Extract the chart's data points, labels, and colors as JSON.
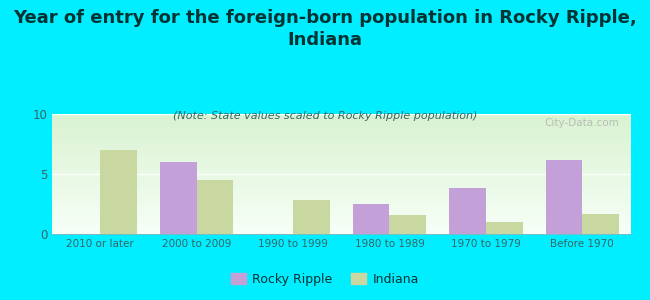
{
  "title": "Year of entry for the foreign-born population in Rocky Ripple,\nIndiana",
  "subtitle": "(Note: State values scaled to Rocky Ripple population)",
  "categories": [
    "2010 or later",
    "2000 to 2009",
    "1990 to 1999",
    "1980 to 1989",
    "1970 to 1979",
    "Before 1970"
  ],
  "rocky_ripple": [
    0,
    6.0,
    0,
    2.5,
    3.8,
    6.2
  ],
  "indiana": [
    7.0,
    4.5,
    2.8,
    1.6,
    1.0,
    1.7
  ],
  "rocky_ripple_color": "#c4a0d8",
  "indiana_color": "#c8d8a0",
  "background_color": "#00eeff",
  "ylim": [
    0,
    10
  ],
  "yticks": [
    0,
    5,
    10
  ],
  "title_fontsize": 13,
  "subtitle_fontsize": 8,
  "watermark": "City-Data.com",
  "bar_width": 0.38,
  "legend_rocky": "Rocky Ripple",
  "legend_indiana": "Indiana",
  "title_color": "#003333",
  "subtitle_color": "#336666",
  "tick_color": "#336666"
}
